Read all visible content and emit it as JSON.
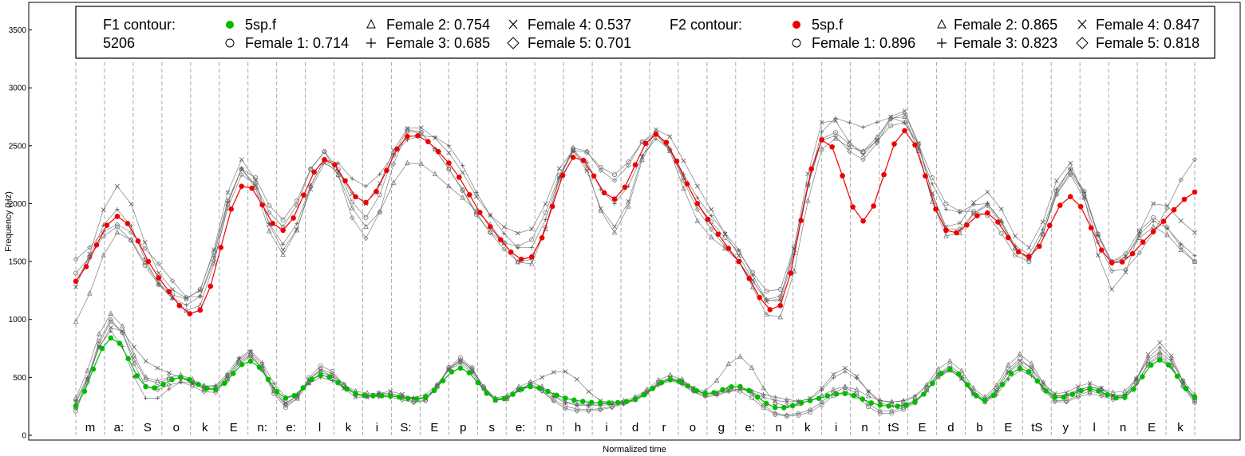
{
  "chart_data": {
    "type": "line",
    "xlabel": "Normalized time",
    "ylabel": "Frequency (Hz)",
    "ylim": [
      0,
      3600
    ],
    "yticks": [
      0,
      500,
      1000,
      1500,
      2000,
      2500,
      3000,
      3500
    ],
    "xlim": [
      0,
      39
    ],
    "grid": "vertical dashed lines at segment boundaries",
    "segments": [
      "m",
      "a:",
      "S",
      "o",
      "k",
      "E",
      "n:",
      "e:",
      "l",
      "k",
      "i",
      "S:",
      "E",
      "p",
      "s",
      "e:",
      "n",
      "h",
      "i",
      "d",
      "r",
      "o",
      "g",
      "e:",
      "n",
      "k",
      "i",
      "n",
      "tS",
      "E",
      "d",
      "b",
      "E",
      "tS",
      "y",
      "l",
      "n",
      "E",
      "k"
    ],
    "legend": {
      "position": "top",
      "f1_title": "F1 contour:",
      "f1_id": "5206",
      "f1_reference": "5sp.f",
      "f1_entries": [
        "Female 1: 0.714",
        "Female 2: 0.754",
        "Female 3: 0.685",
        "Female 4: 0.537",
        "Female 5: 0.701"
      ],
      "f2_title": "F2 contour:",
      "f2_reference": "5sp.f",
      "f2_entries": [
        "Female 1: 0.896",
        "Female 2: 0.865",
        "Female 3: 0.823",
        "Female 4: 0.847",
        "Female 5: 0.818"
      ]
    },
    "series": [
      {
        "name": "5sp.f",
        "formant": "F1",
        "color": "#00bb00",
        "values": [
          250,
          840,
          420,
          500,
          400,
          640,
          320,
          520,
          360,
          340,
          330,
          580,
          310,
          420,
          320,
          280,
          310,
          480,
          360,
          420,
          240,
          300,
          360,
          260,
          290,
          570,
          300,
          580,
          330,
          400,
          330,
          650,
          330
        ]
      },
      {
        "name": "5sp.f",
        "formant": "F2",
        "color": "#ee0000",
        "values": [
          1330,
          1890,
          1360,
          1080,
          2150,
          1770,
          2380,
          2010,
          2580,
          2350,
          1800,
          1540,
          2400,
          2040,
          2600,
          2000,
          1500,
          1120,
          2550,
          1850,
          2630,
          1770,
          1920,
          1540,
          2060,
          1490,
          1760,
          2100
        ]
      },
      {
        "name": "Female 1",
        "formant": "F1",
        "marker": "circle",
        "values": [
          210,
          980,
          480,
          500,
          390,
          690,
          240,
          600,
          350,
          360,
          300,
          670,
          300,
          430,
          250,
          230,
          320,
          490,
          350,
          380,
          180,
          200,
          380,
          190,
          280,
          600,
          310,
          660,
          300,
          380,
          340,
          680,
          300
        ]
      },
      {
        "name": "Female 2",
        "formant": "F1",
        "marker": "triangle",
        "values": [
          320,
          1050,
          500,
          520,
          420,
          700,
          260,
          540,
          380,
          360,
          320,
          650,
          320,
          460,
          290,
          270,
          330,
          520,
          380,
          680,
          280,
          300,
          420,
          300,
          330,
          640,
          330,
          700,
          340,
          420,
          380,
          720,
          350
        ]
      },
      {
        "name": "Female 3",
        "formant": "F1",
        "marker": "plus",
        "values": [
          300,
          900,
          320,
          460,
          430,
          730,
          330,
          500,
          360,
          340,
          350,
          620,
          300,
          440,
          280,
          260,
          300,
          470,
          330,
          400,
          330,
          310,
          550,
          300,
          340,
          580,
          280,
          560,
          340,
          420,
          350,
          760,
          310
        ]
      },
      {
        "name": "Female 4",
        "formant": "F1",
        "marker": "cross",
        "values": [
          280,
          930,
          640,
          500,
          400,
          720,
          280,
          560,
          330,
          380,
          320,
          640,
          300,
          450,
          550,
          300,
          310,
          500,
          360,
          400,
          300,
          320,
          580,
          280,
          300,
          560,
          290,
          640,
          360,
          450,
          340,
          800,
          300
        ]
      },
      {
        "name": "Female 5",
        "formant": "F1",
        "marker": "diamond",
        "values": [
          230,
          1000,
          420,
          460,
          370,
          680,
          270,
          570,
          360,
          330,
          300,
          650,
          310,
          430,
          230,
          220,
          310,
          480,
          340,
          420,
          190,
          220,
          410,
          210,
          290,
          560,
          300,
          620,
          290,
          360,
          320,
          700,
          280
        ]
      },
      {
        "name": "Female 1",
        "formant": "F2",
        "marker": "circle",
        "values": [
          1400,
          1800,
          1300,
          1260,
          2300,
          1860,
          2450,
          1880,
          2640,
          2300,
          1750,
          1690,
          2460,
          2250,
          2600,
          2000,
          1580,
          1260,
          2560,
          2450,
          2700,
          2000,
          1900,
          1500,
          2300,
          1500,
          1880,
          1500
        ]
      },
      {
        "name": "Female 2",
        "formant": "F2",
        "marker": "triangle",
        "values": [
          980,
          1750,
          1320,
          1120,
          2300,
          1560,
          2380,
          1800,
          2350,
          2150,
          1820,
          1480,
          2480,
          1750,
          2600,
          1850,
          1500,
          1020,
          2470,
          2450,
          2750,
          1720,
          2000,
          1520,
          2270,
          1500,
          1800,
          1500
        ]
      },
      {
        "name": "Female 3",
        "formant": "F2",
        "marker": "plus",
        "values": [
          1330,
          1950,
          1300,
          1200,
          2300,
          1650,
          2380,
          2150,
          2550,
          2500,
          1900,
          1620,
          2450,
          2000,
          2560,
          2050,
          1600,
          1160,
          2620,
          2660,
          2700,
          1950,
          2000,
          1560,
          2300,
          1480,
          1850,
          1550
        ]
      },
      {
        "name": "Female 4",
        "formant": "F2",
        "marker": "cross",
        "values": [
          1280,
          2150,
          1400,
          1250,
          2380,
          1600,
          2350,
          2000,
          2650,
          2440,
          1900,
          1780,
          2460,
          1800,
          2640,
          2150,
          1550,
          1180,
          2700,
          2420,
          2800,
          1800,
          2100,
          1620,
          2350,
          1260,
          2000,
          1750
        ]
      },
      {
        "name": "Female 5",
        "formant": "F2",
        "marker": "diamond",
        "values": [
          1520,
          1820,
          1480,
          1200,
          2250,
          1800,
          2450,
          1700,
          2620,
          2300,
          1750,
          1520,
          2480,
          2200,
          2620,
          1950,
          1500,
          1200,
          2550,
          2380,
          2780,
          1780,
          1980,
          1520,
          2250,
          1420,
          1750,
          2380
        ]
      }
    ]
  }
}
